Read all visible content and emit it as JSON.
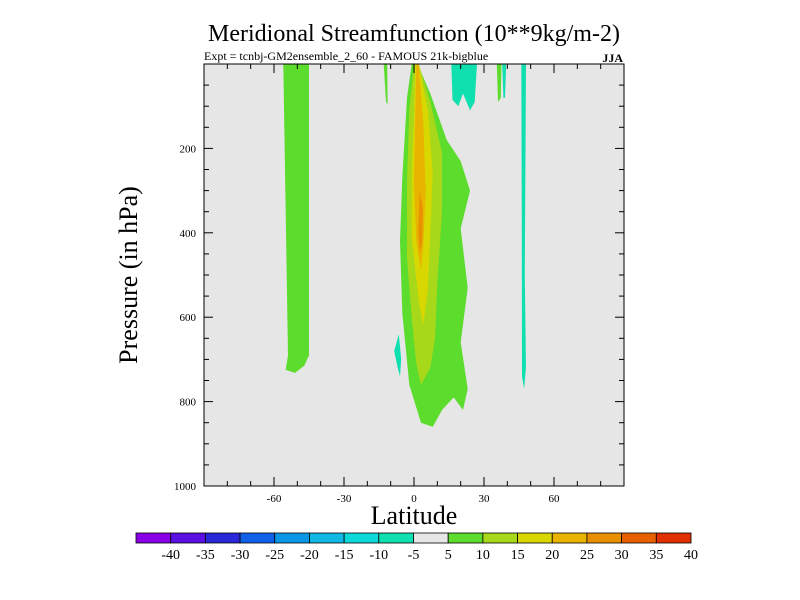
{
  "chart_data": {
    "type": "contour",
    "title": "Meridional Streamfunction (10**9kg/m-2)",
    "subtitle": "Expt = tcnbj-GM2ensemble_2_60 - FAMOUS 21k-bigblue",
    "season": "JJA",
    "xlabel": "Latitude",
    "ylabel": "Pressure (in hPa)",
    "xlim": [
      -90,
      90
    ],
    "ylim": [
      1000,
      0
    ],
    "x_ticks": [
      -60,
      -30,
      0,
      30,
      60
    ],
    "y_ticks": [
      200,
      400,
      600,
      800,
      1000
    ],
    "background_interval": [
      -5,
      5
    ],
    "colorbar": {
      "levels": [
        -40,
        -35,
        -30,
        -25,
        -20,
        -15,
        -10,
        -5,
        5,
        10,
        15,
        20,
        25,
        30,
        35,
        40
      ],
      "colors": [
        "#8a00e6",
        "#5a10e0",
        "#2828d8",
        "#1060e8",
        "#0a98e6",
        "#10b8e4",
        "#0ed8d8",
        "#10e0b0",
        "#e6e6e6",
        "#5cdc2c",
        "#a8d81a",
        "#d8d800",
        "#e8b400",
        "#e89000",
        "#e86000",
        "#e03000"
      ]
    },
    "regions": [
      {
        "name": "sh-midlat-cell",
        "level_band": [
          5,
          10
        ],
        "color": "#5cdc2c",
        "points": [
          [
            -56,
            0
          ],
          [
            -45,
            0
          ],
          [
            -45,
            690
          ],
          [
            -47,
            715
          ],
          [
            -51,
            732
          ],
          [
            -55,
            725
          ],
          [
            -54,
            690
          ]
        ]
      },
      {
        "name": "hadley-cell-outer",
        "level_band": [
          5,
          10
        ],
        "color": "#5cdc2c",
        "points": [
          [
            -1,
            0
          ],
          [
            1.5,
            0
          ],
          [
            7,
            70
          ],
          [
            14,
            180
          ],
          [
            20,
            230
          ],
          [
            24,
            300
          ],
          [
            20,
            390
          ],
          [
            23,
            530
          ],
          [
            20,
            660
          ],
          [
            23,
            770
          ],
          [
            21,
            820
          ],
          [
            17,
            790
          ],
          [
            12,
            820
          ],
          [
            8,
            860
          ],
          [
            3,
            850
          ],
          [
            -2,
            760
          ],
          [
            -5,
            590
          ],
          [
            -6,
            420
          ],
          [
            -5,
            270
          ],
          [
            -3,
            80
          ]
        ]
      },
      {
        "name": "hadley-cell-10",
        "level_band": [
          10,
          15
        ],
        "color": "#a8d81a",
        "points": [
          [
            0,
            0
          ],
          [
            2,
            0
          ],
          [
            7,
            90
          ],
          [
            12,
            210
          ],
          [
            12,
            350
          ],
          [
            10,
            520
          ],
          [
            9,
            650
          ],
          [
            7,
            720
          ],
          [
            3,
            760
          ],
          [
            1,
            710
          ],
          [
            -1,
            600
          ],
          [
            -3,
            460
          ],
          [
            -3,
            280
          ],
          [
            -2,
            110
          ]
        ]
      },
      {
        "name": "hadley-cell-15",
        "level_band": [
          15,
          20
        ],
        "color": "#d8d800",
        "points": [
          [
            0.5,
            0
          ],
          [
            2,
            0
          ],
          [
            6,
            110
          ],
          [
            8,
            260
          ],
          [
            7,
            400
          ],
          [
            6,
            530
          ],
          [
            4,
            620
          ],
          [
            2,
            560
          ],
          [
            -1,
            410
          ],
          [
            -1,
            260
          ],
          [
            0,
            120
          ]
        ]
      },
      {
        "name": "hadley-cell-20",
        "level_band": [
          20,
          25
        ],
        "color": "#e8b400",
        "points": [
          [
            1,
            0
          ],
          [
            2,
            0
          ],
          [
            4,
            140
          ],
          [
            5,
            300
          ],
          [
            4,
            430
          ],
          [
            3,
            490
          ],
          [
            1,
            420
          ],
          [
            0,
            280
          ]
        ]
      },
      {
        "name": "hadley-cell-25",
        "level_band": [
          25,
          30
        ],
        "color": "#e89000",
        "points": [
          [
            2.5,
            300
          ],
          [
            3.8,
            345
          ],
          [
            3.5,
            420
          ],
          [
            2.5,
            450
          ],
          [
            1.8,
            400
          ]
        ]
      },
      {
        "name": "upper-strip-n",
        "level_band": [
          5,
          10
        ],
        "color": "#5cdc2c",
        "points": [
          [
            35.5,
            0
          ],
          [
            37.5,
            0
          ],
          [
            37.2,
            80
          ],
          [
            36,
            90
          ]
        ]
      },
      {
        "name": "upper-strip-s",
        "level_band": [
          5,
          10
        ],
        "color": "#5cdc2c",
        "points": [
          [
            -13,
            0
          ],
          [
            -11.5,
            0
          ],
          [
            -11.3,
            95
          ],
          [
            -12,
            90
          ]
        ]
      },
      {
        "name": "subtropical-cell-n",
        "level_band": [
          -10,
          -5
        ],
        "color": "#10e0b0",
        "points": [
          [
            16,
            0
          ],
          [
            27,
            0
          ],
          [
            26,
            90
          ],
          [
            24,
            110
          ],
          [
            21,
            70
          ],
          [
            19,
            100
          ],
          [
            16.5,
            85
          ]
        ]
      },
      {
        "name": "neg-patch-upper",
        "level_band": [
          -10,
          -5
        ],
        "color": "#10e0b0",
        "points": [
          [
            37.8,
            0
          ],
          [
            39.5,
            0
          ],
          [
            39,
            80
          ],
          [
            38.3,
            80
          ]
        ]
      },
      {
        "name": "neg-strip-n-midlat",
        "level_band": [
          -10,
          -5
        ],
        "color": "#10e0b0",
        "points": [
          [
            46,
            0
          ],
          [
            48,
            0
          ],
          [
            47.5,
            500
          ],
          [
            48,
            720
          ],
          [
            47.2,
            770
          ],
          [
            46.3,
            740
          ],
          [
            46.2,
            400
          ]
        ]
      },
      {
        "name": "neg-patch-lower-s",
        "level_band": [
          -10,
          -5
        ],
        "color": "#10e0b0",
        "points": [
          [
            -6.5,
            640
          ],
          [
            -5.5,
            700
          ],
          [
            -6,
            740
          ],
          [
            -7,
            720
          ],
          [
            -8.5,
            680
          ]
        ]
      }
    ]
  }
}
